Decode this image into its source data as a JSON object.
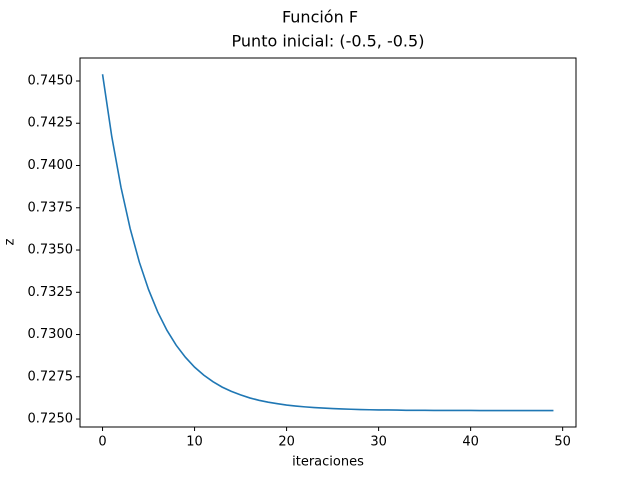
{
  "chart_data": {
    "type": "line",
    "title": "Función F",
    "subtitle": "Punto inicial: (-0.5, -0.5)",
    "x_label": "iteraciones",
    "y_label": "z",
    "x": [
      0,
      1,
      2,
      3,
      4,
      5,
      6,
      7,
      8,
      9,
      10,
      11,
      12,
      13,
      14,
      15,
      16,
      17,
      18,
      19,
      20,
      21,
      22,
      23,
      24,
      25,
      26,
      27,
      28,
      29,
      30,
      31,
      32,
      33,
      34,
      35,
      36,
      37,
      38,
      39,
      40,
      41,
      42,
      43,
      44,
      45,
      46,
      47,
      48,
      49
    ],
    "series": [
      {
        "color": "#1f77b4",
        "values": [
          0.7454,
          0.74172,
          0.73872,
          0.73627,
          0.73428,
          0.73266,
          0.73133,
          0.73025,
          0.72937,
          0.72866,
          0.72807,
          0.7276,
          0.72721,
          0.72689,
          0.72664,
          0.72643,
          0.72625,
          0.72611,
          0.726,
          0.72591,
          0.72583,
          0.72577,
          0.72572,
          0.72568,
          0.72565,
          0.72562,
          0.7256,
          0.72558,
          0.72556,
          0.72555,
          0.72554,
          0.72554,
          0.72553,
          0.72552,
          0.72552,
          0.72552,
          0.72551,
          0.72551,
          0.72551,
          0.72551,
          0.72551,
          0.7255,
          0.7255,
          0.7255,
          0.7255,
          0.7255,
          0.7255,
          0.7255,
          0.7255,
          0.7255
        ]
      }
    ],
    "xlim": [
      -2.45,
      51.45
    ],
    "xticks": [
      0,
      10,
      20,
      30,
      40,
      50
    ],
    "ylim": [
      0.72453,
      0.74636
    ],
    "yticks": [
      {
        "value": 0.725,
        "label": "0.7250"
      },
      {
        "value": 0.7275,
        "label": "0.7275"
      },
      {
        "value": 0.73,
        "label": "0.7300"
      },
      {
        "value": 0.7325,
        "label": "0.7325"
      },
      {
        "value": 0.735,
        "label": "0.7350"
      },
      {
        "value": 0.7375,
        "label": "0.7375"
      },
      {
        "value": 0.74,
        "label": "0.7400"
      },
      {
        "value": 0.7425,
        "label": "0.7425"
      },
      {
        "value": 0.745,
        "label": "0.7450"
      }
    ]
  }
}
